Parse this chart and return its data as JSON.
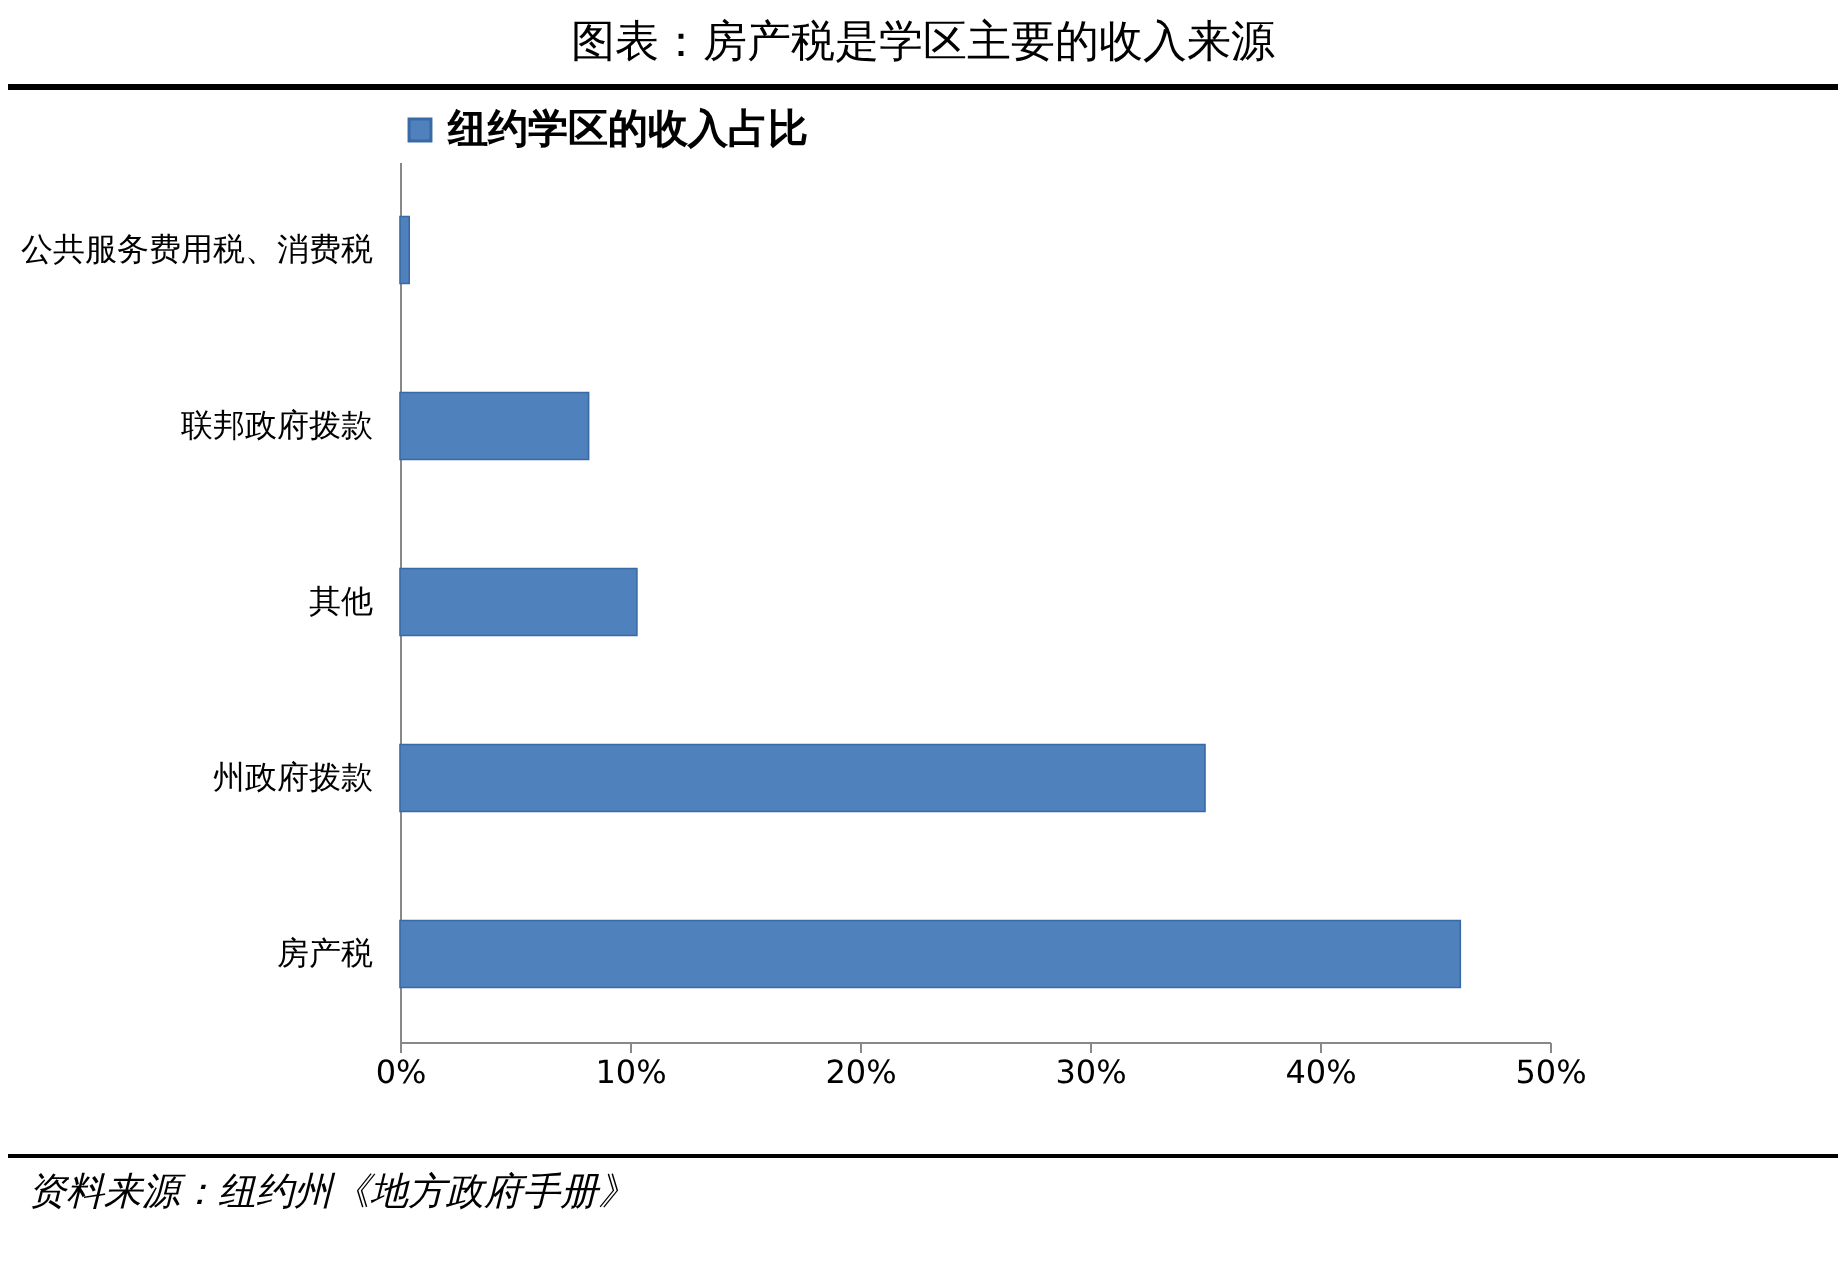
{
  "chart_data": {
    "type": "bar",
    "orientation": "horizontal",
    "title": "图表：房产税是学区主要的收入来源",
    "categories": [
      "公共服务费用税、消费税",
      "联邦政府拨款",
      "其他",
      "州政府拨款",
      "房产税"
    ],
    "series": [
      {
        "name": "纽约学区的收入占比",
        "color": "#4f81bd",
        "values": [
          0.4,
          8.2,
          10.3,
          35.0,
          46.1
        ]
      }
    ],
    "xlim": [
      0,
      50
    ],
    "xticks": [
      {
        "value": 0,
        "label": "0%"
      },
      {
        "value": 10,
        "label": "10%"
      },
      {
        "value": 20,
        "label": "20%"
      },
      {
        "value": 30,
        "label": "30%"
      },
      {
        "value": 40,
        "label": "40%"
      },
      {
        "value": 50,
        "label": "50%"
      }
    ],
    "grid": false,
    "legend": "top",
    "annotations": [
      "资料来源：纽约州《地方政府手册》"
    ]
  }
}
